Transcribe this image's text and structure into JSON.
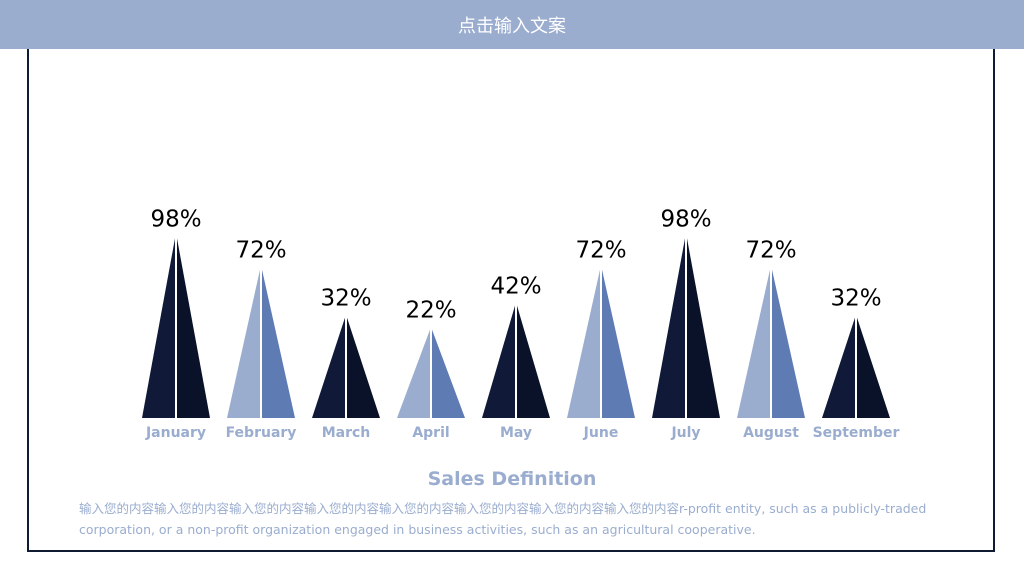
{
  "header": {
    "title": "点击输入文案"
  },
  "section": {
    "title": "Sales Definition",
    "description": "输入您的内容输入您的内容输入您的内容输入您的内容输入您的内容输入您的内容输入您的内容输入您的内容r-profit  entity, such as a publicly-traded corporation, or a non-profit organization engaged in business activities, such as an agricultural cooperative."
  },
  "colors": {
    "header_bg": "#9aadcf",
    "dark_left": "#101a38",
    "dark_right": "#0a1229",
    "light_left": "#9aadcf",
    "light_right": "#5f7bb3",
    "month_label": "#9aadcf",
    "value_label": "#000000"
  },
  "chart_data": {
    "type": "bar",
    "categories": [
      "January",
      "February",
      "March",
      "April",
      "May",
      "June",
      "July",
      "August",
      "September"
    ],
    "values": [
      98,
      72,
      32,
      22,
      42,
      72,
      98,
      72,
      32
    ],
    "value_labels": [
      "98%",
      "72%",
      "32%",
      "22%",
      "42%",
      "72%",
      "98%",
      "72%",
      "32%"
    ],
    "styles": [
      "dark",
      "light",
      "dark",
      "light",
      "dark",
      "light",
      "dark",
      "light",
      "dark"
    ],
    "bar_shape": "triangle",
    "title": "",
    "xlabel": "",
    "ylabel": ""
  }
}
